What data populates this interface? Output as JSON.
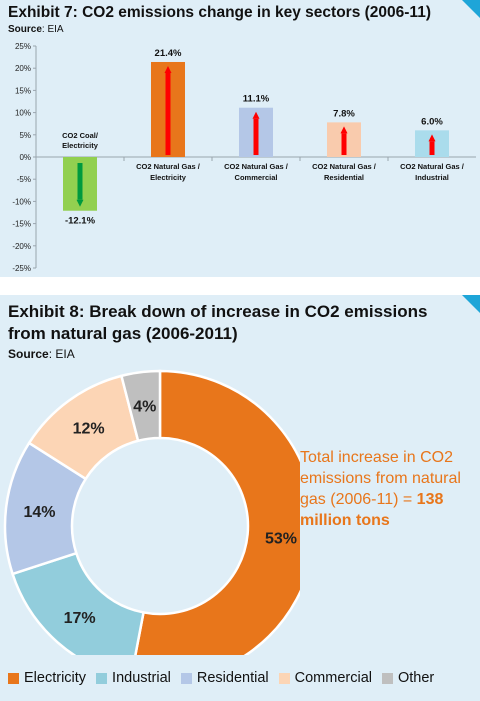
{
  "exhibit7": {
    "title": "Exhibit 7: CO2 emissions change in key sectors (2006-11)",
    "source_label": "Source",
    "source_value": ": EIA",
    "chart_data": {
      "type": "bar",
      "categories": [
        "CO2 Coal/ Electricity",
        "CO2 Natural Gas / Electricity",
        "CO2 Natural Gas / Commercial",
        "CO2 Natural Gas / Residential",
        "CO2 Natural Gas / Industrial"
      ],
      "category_lines": [
        [
          "CO2 Coal/",
          "Electricity"
        ],
        [
          "CO2 Natural Gas /",
          "Electricity"
        ],
        [
          "CO2 Natural Gas /",
          "Commercial"
        ],
        [
          "CO2 Natural Gas /",
          "Residential"
        ],
        [
          "CO2 Natural Gas /",
          "Industrial"
        ]
      ],
      "values": [
        -12.1,
        21.4,
        11.1,
        7.8,
        6.0
      ],
      "value_labels": [
        "-12.1%",
        "21.4%",
        "11.1%",
        "7.8%",
        "6.0%"
      ],
      "ylim": [
        -25,
        25
      ],
      "yticks": [
        25,
        20,
        15,
        10,
        5,
        0,
        -5,
        -10,
        -15,
        -20,
        -25
      ],
      "ytick_labels": [
        "25%",
        "20%",
        "15%",
        "10%",
        "5%",
        "0%",
        "-5%",
        "-10%",
        "-15%",
        "-20%",
        "-25%"
      ],
      "bar_colors": [
        "#92d050",
        "#e8761b",
        "#b4c7e7",
        "#f9cbad",
        "#aadcec"
      ],
      "arrow_colors": [
        "#009a3e",
        "#ff0000",
        "#ff0000",
        "#ff0000",
        "#ff0000"
      ],
      "title": "Exhibit 7: CO2 emissions change in key sectors (2006-11)",
      "xlabel": "",
      "ylabel": ""
    }
  },
  "exhibit8": {
    "title": "Exhibit 8: Break down of increase in CO2 emissions from natural gas (2006-2011)",
    "source_label": "Source",
    "source_value": ": EIA",
    "annotation_text": "Total increase in CO2 emissions from natural gas (2006-11) = ",
    "annotation_highlight": "138 million tons",
    "chart_data": {
      "type": "pie",
      "categories": [
        "Electricity",
        "Industrial",
        "Residential",
        "Commercial",
        "Other"
      ],
      "values": [
        53,
        17,
        14,
        12,
        4
      ],
      "value_labels": [
        "53%",
        "17%",
        "14%",
        "12%",
        "4%"
      ],
      "colors": [
        "#e8761b",
        "#92cddc",
        "#b4c7e7",
        "#fcd5b5",
        "#bfbfbf"
      ],
      "legend_position": "bottom",
      "title": "Exhibit 8: Break down of increase in CO2 emissions from natural gas (2006-2011)"
    }
  }
}
